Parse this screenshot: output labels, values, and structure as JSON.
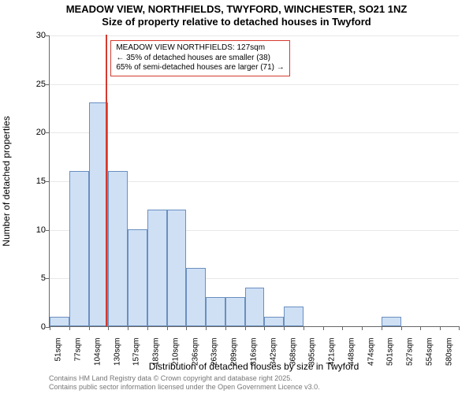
{
  "title_line1": "MEADOW VIEW, NORTHFIELDS, TWYFORD, WINCHESTER, SO21 1NZ",
  "title_line2": "Size of property relative to detached houses in Twyford",
  "chart": {
    "type": "histogram",
    "ylabel": "Number of detached properties",
    "xlabel": "Distribution of detached houses by size in Twyford",
    "ylim": [
      0,
      30
    ],
    "ytick_step": 5,
    "bar_fill": "#cfe0f5",
    "bar_stroke": "#6a8fbf",
    "grid_color": "#e8e8e8",
    "axis_color": "#666666",
    "background_color": "#ffffff",
    "label_fontsize": 12,
    "tick_fontsize": 10,
    "categories": [
      "51sqm",
      "77sqm",
      "104sqm",
      "130sqm",
      "157sqm",
      "183sqm",
      "210sqm",
      "236sqm",
      "263sqm",
      "289sqm",
      "316sqm",
      "342sqm",
      "368sqm",
      "395sqm",
      "421sqm",
      "448sqm",
      "474sqm",
      "501sqm",
      "527sqm",
      "554sqm",
      "580sqm"
    ],
    "values": [
      1,
      16,
      23,
      16,
      10,
      12,
      12,
      6,
      3,
      3,
      4,
      1,
      2,
      0,
      0,
      0,
      0,
      1,
      0,
      0,
      0
    ],
    "marker": {
      "color": "#d43a2f",
      "position_index": 2.88,
      "annotation_lines": [
        "MEADOW VIEW NORTHFIELDS: 127sqm",
        "← 35% of detached houses are smaller (38)",
        "65% of semi-detached houses are larger (71) →"
      ]
    }
  },
  "footnote_line1": "Contains HM Land Registry data © Crown copyright and database right 2025.",
  "footnote_line2": "Contains public sector information licensed under the Open Government Licence v3.0."
}
